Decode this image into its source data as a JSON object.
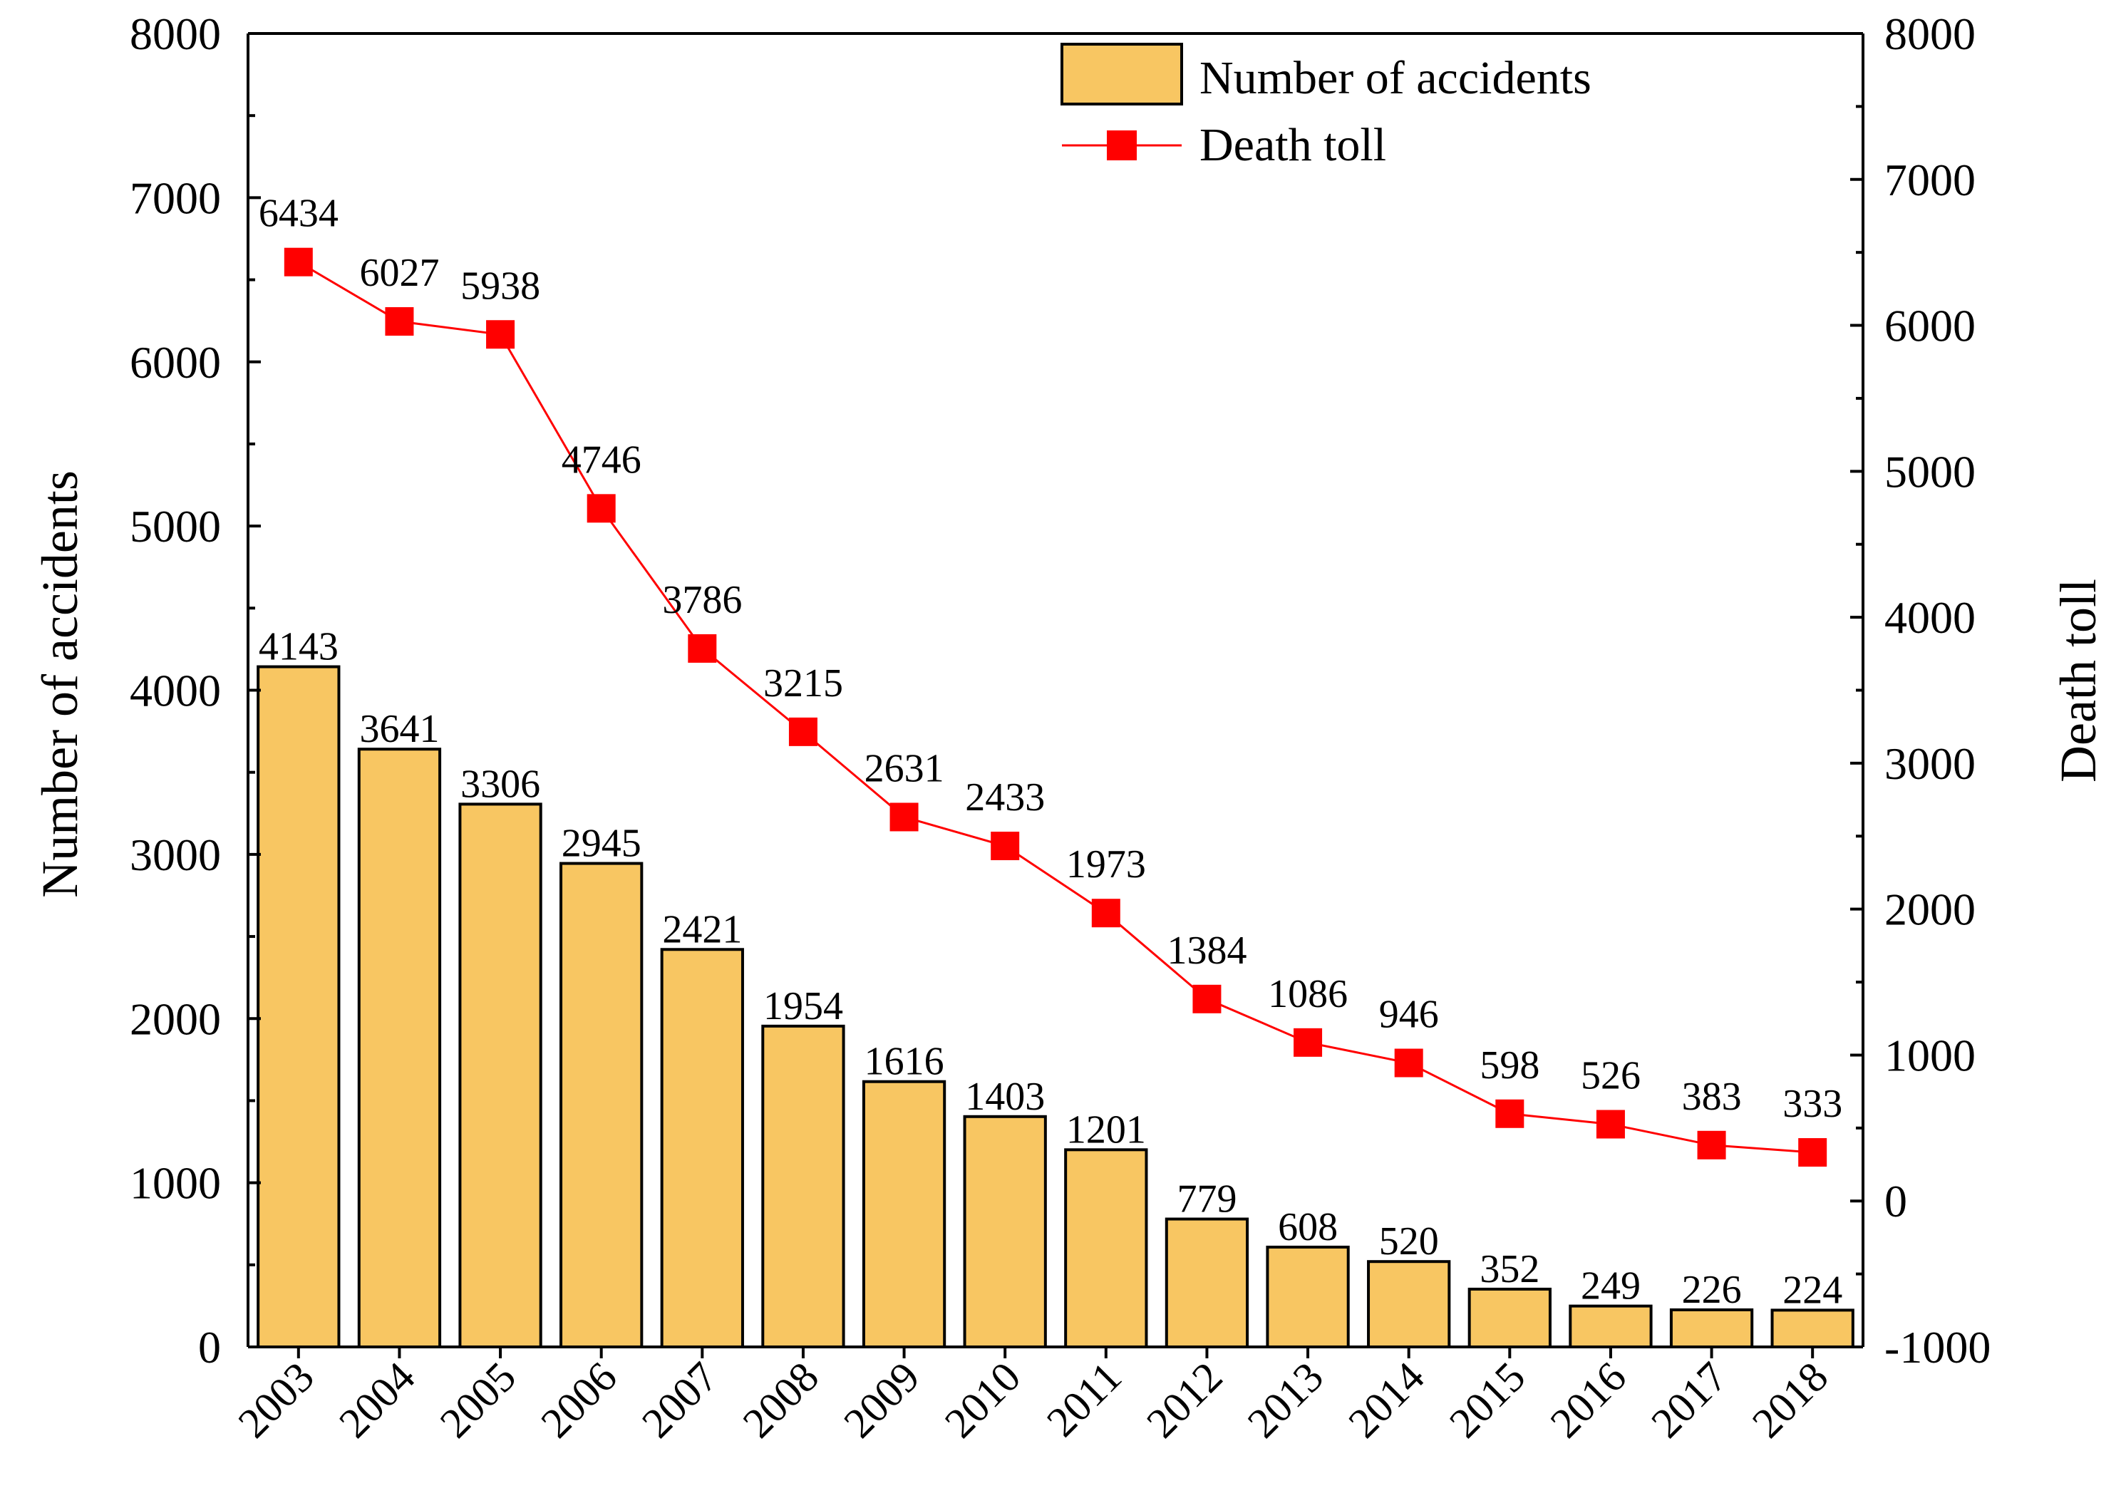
{
  "chart_data": {
    "type": "bar",
    "categories": [
      "2003",
      "2004",
      "2005",
      "2006",
      "2007",
      "2008",
      "2009",
      "2010",
      "2011",
      "2012",
      "2013",
      "2014",
      "2015",
      "2016",
      "2017",
      "2018"
    ],
    "series": [
      {
        "name": "Number of accidents",
        "type": "bar",
        "axis": "left",
        "color": "#F8C662",
        "values": [
          4143,
          3641,
          3306,
          2945,
          2421,
          1954,
          1616,
          1403,
          1201,
          779,
          608,
          520,
          352,
          249,
          226,
          224
        ],
        "labels": [
          "4143",
          "3641",
          "3306",
          "2945",
          "2421",
          "1954",
          "1616",
          "1403",
          "1201",
          "779",
          "608",
          "520",
          "352",
          "249",
          "226",
          "224"
        ]
      },
      {
        "name": "Death toll",
        "type": "line",
        "axis": "right",
        "color": "#FF0000",
        "values": [
          6434,
          6027,
          5938,
          4746,
          3786,
          3215,
          2631,
          2433,
          1973,
          1384,
          1086,
          946,
          598,
          526,
          383,
          333
        ],
        "labels": [
          "6434",
          "6027",
          "5938",
          "4746",
          "3786",
          "3215",
          "2631",
          "2433",
          "1973",
          "1384",
          "1086",
          "946",
          "598",
          "526",
          "383",
          "333"
        ]
      }
    ],
    "ylabel": "Number of accidents",
    "y2label": "Death toll",
    "xlabel": "",
    "ylim": [
      0,
      8000
    ],
    "y2lim": [
      -1000,
      8000
    ],
    "yticks": [
      "0",
      "1000",
      "2000",
      "3000",
      "4000",
      "5000",
      "6000",
      "7000",
      "8000"
    ],
    "y2ticks": [
      "-1000",
      "0",
      "1000",
      "2000",
      "3000",
      "4000",
      "5000",
      "6000",
      "7000",
      "8000"
    ],
    "legend": {
      "position": "top-right",
      "entries": [
        "Number of accidents",
        "Death toll"
      ]
    },
    "grid": false
  }
}
